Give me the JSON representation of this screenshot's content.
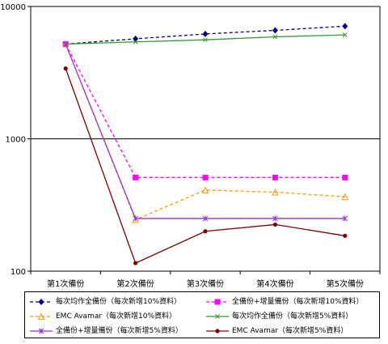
{
  "chart_data": {
    "type": "line",
    "yscale": "log",
    "ylim": [
      100,
      10000
    ],
    "grid": true,
    "legend_position": "bottom",
    "categories": [
      "第1次備份",
      "第2次備份",
      "第3次備份",
      "第4次備份",
      "第5次備份"
    ],
    "yticks": [
      "100",
      "1000",
      "10000"
    ],
    "series": [
      {
        "name": "每次均作全備份（每次新增10%資料）",
        "color": "#000080",
        "dash": "4,3",
        "marker": "diamond",
        "values": [
          5200,
          5700,
          6200,
          6600,
          7100
        ]
      },
      {
        "name": "全備份+增量備份（每次新增10%資料）",
        "color": "#ff00ff",
        "dash": "4,3",
        "marker": "square",
        "values": [
          5200,
          510,
          510,
          510,
          510
        ]
      },
      {
        "name": "EMC Avamar（每次新增10%資料）",
        "color": "#ff9900",
        "dash": "4,3",
        "marker": "triangle",
        "values": [
          5200,
          245,
          410,
          395,
          365
        ]
      },
      {
        "name": "每次均作全備份（每次新增5%資料）",
        "color": "#339933",
        "dash": "",
        "marker": "x",
        "values": [
          5200,
          5400,
          5600,
          5900,
          6100
        ]
      },
      {
        "name": "全備份+增量備份（每次新增5%資料）",
        "color": "#9933cc",
        "dash": "",
        "marker": "star",
        "values": [
          5200,
          250,
          250,
          250,
          250
        ]
      },
      {
        "name": "EMC Avamar（每次新增5%資料）",
        "color": "#800000",
        "dash": "",
        "marker": "circle",
        "values": [
          3400,
          115,
          200,
          225,
          185
        ]
      }
    ]
  }
}
